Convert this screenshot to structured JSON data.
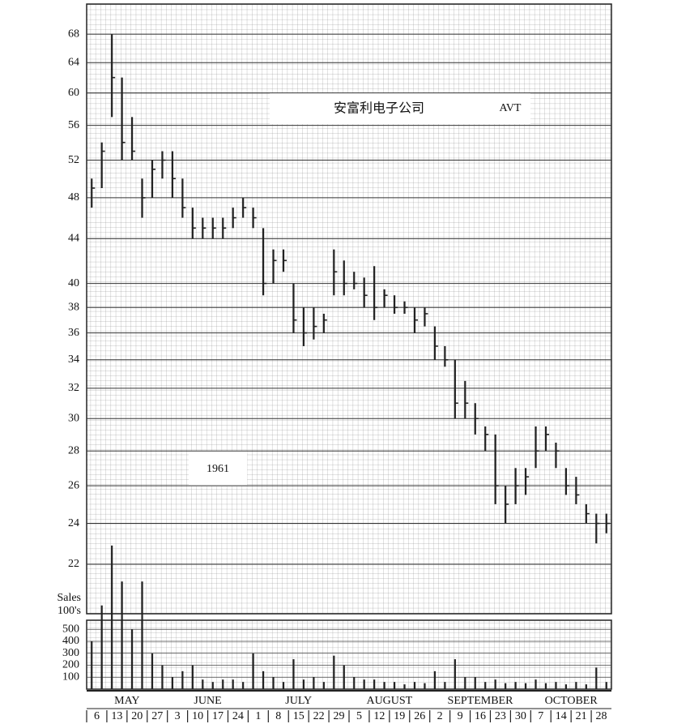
{
  "chart_data": {
    "type": "ohlc",
    "title": "安富利电子公司",
    "ticker": "AVT",
    "year_label": "1961",
    "volume_label": [
      "Sales",
      "100's"
    ],
    "months": [
      "MAY",
      "JUNE",
      "JULY",
      "AUGUST",
      "SEPTEMBER",
      "OCTOBER"
    ],
    "categories": [
      "6",
      null,
      "13",
      null,
      "20",
      null,
      "27",
      null,
      "3",
      null,
      "10",
      null,
      "17",
      null,
      "24",
      null,
      "1",
      null,
      "8",
      null,
      "15",
      null,
      "22",
      null,
      "29",
      null,
      "5",
      null,
      "12",
      null,
      "19",
      null,
      "26",
      null,
      "2",
      null,
      "9",
      null,
      "16",
      null,
      "23",
      null,
      "30",
      null,
      "7",
      null,
      "14",
      null,
      "21",
      null,
      "28",
      null
    ],
    "high": [
      50,
      54,
      68,
      62,
      57,
      50,
      52,
      53,
      53,
      50,
      47,
      46,
      46,
      46,
      47,
      48,
      47,
      45,
      43,
      43,
      40,
      38,
      38,
      37.5,
      43,
      42,
      41,
      40.5,
      41.5,
      39.5,
      39,
      38.5,
      38,
      38,
      36.5,
      35,
      34,
      32.5,
      31,
      29.5,
      29,
      26,
      27,
      27,
      29.5,
      29.5,
      28.5,
      27,
      26.5,
      25,
      24.5,
      24.5
    ],
    "low": [
      47,
      49,
      57,
      52,
      52,
      46,
      48,
      50,
      48,
      46,
      44,
      44,
      44,
      44,
      45,
      46,
      45,
      39,
      40,
      41,
      36,
      35,
      35.5,
      36,
      39,
      39,
      39.5,
      38,
      37,
      38,
      37.5,
      37.5,
      36,
      36.5,
      34,
      33.5,
      30,
      30,
      29,
      28,
      25,
      24,
      25,
      25.5,
      27,
      28,
      27,
      25.5,
      25,
      24,
      23,
      23.5
    ],
    "close": [
      49,
      53,
      62,
      54,
      53,
      48,
      51,
      52,
      50,
      47,
      45,
      45,
      45,
      45,
      46,
      47,
      46,
      40,
      42,
      42,
      37,
      36,
      36.5,
      37,
      41,
      40,
      40,
      39,
      38,
      39,
      38,
      38,
      37,
      37.5,
      35,
      34,
      31,
      31,
      30,
      29,
      26,
      25,
      26,
      26.5,
      28,
      29,
      28,
      26,
      25.5,
      24.5,
      24,
      24
    ],
    "volume": [
      400,
      700,
      1200,
      900,
      500,
      900,
      300,
      200,
      100,
      150,
      200,
      80,
      60,
      80,
      80,
      60,
      300,
      150,
      100,
      60,
      250,
      80,
      100,
      60,
      280,
      200,
      100,
      80,
      80,
      60,
      60,
      40,
      60,
      50,
      150,
      60,
      250,
      100,
      100,
      60,
      80,
      50,
      60,
      50,
      80,
      50,
      60,
      40,
      60,
      40,
      180,
      60
    ],
    "color": "#222",
    "log_scale": true,
    "ylim": [
      19.8,
      72.5
    ],
    "yticks": [
      22,
      24,
      26,
      28,
      30,
      32,
      34,
      36,
      38,
      40,
      44,
      48,
      52,
      56,
      60,
      64,
      68
    ],
    "volume_ylim": [
      0,
      576
    ],
    "volume_yticks": [
      100,
      200,
      300,
      400,
      500
    ],
    "grid": true
  }
}
